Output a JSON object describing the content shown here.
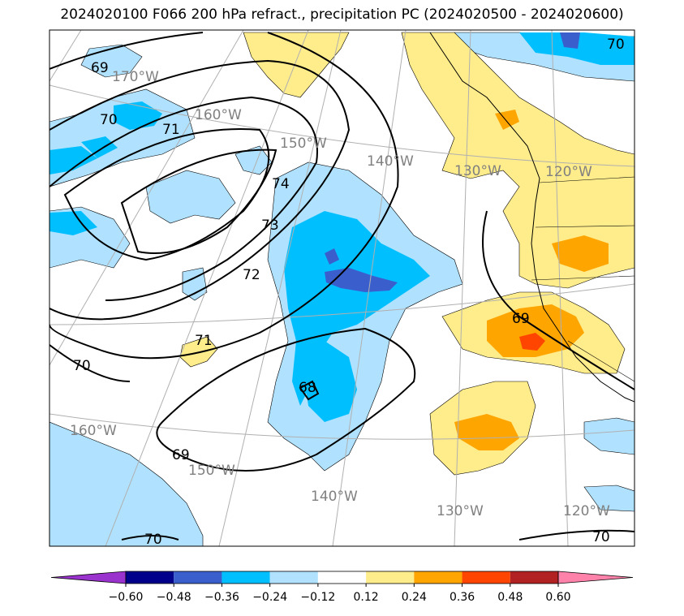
{
  "title": "2024020100 F066 200 hPa refract., precipitation PC (2024020500 - 2024020600)",
  "map": {
    "longitude_labels_top": [
      "170°W",
      "160°W",
      "150°W",
      "140°W",
      "130°W",
      "120°W"
    ],
    "longitude_labels_bottom": [
      "160°W",
      "150°W",
      "140°W",
      "130°W",
      "120°W"
    ],
    "contour_labels": [
      "69",
      "70",
      "71",
      "74",
      "73",
      "72",
      "71",
      "70",
      "68",
      "69",
      "69",
      "70",
      "70",
      "70"
    ],
    "label_color": "#808080"
  },
  "colorbar": {
    "colors": [
      "#9a32cd",
      "#00008b",
      "#3a5fcd",
      "#00bfff",
      "#b0e2ff",
      "#ffffff",
      "#ffec8b",
      "#ffa500",
      "#ff4500",
      "#b22222",
      "#ff82ab"
    ],
    "ticks": [
      "−0.60",
      "−0.48",
      "−0.36",
      "−0.24",
      "−0.12",
      "0.12",
      "0.24",
      "0.36",
      "0.48",
      "0.60"
    ]
  }
}
